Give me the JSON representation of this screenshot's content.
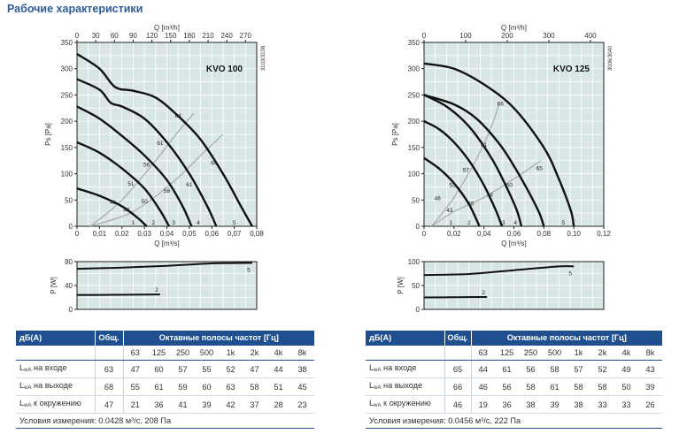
{
  "page": {
    "title": "Рабочие характеристики"
  },
  "products": [
    {
      "name": "KVO 100",
      "code": "3103/3108",
      "table": {
        "header_db": "дБ(А)",
        "header_total": "Общ.",
        "header_bands": "Октавные полосы частот [Гц]",
        "bands": [
          "63",
          "125",
          "250",
          "500",
          "1k",
          "2k",
          "4k",
          "8k"
        ],
        "rows": [
          {
            "label": "L",
            "sub": "wA",
            "suffix": " на входе",
            "total": "63",
            "values": [
              "47",
              "60",
              "57",
              "55",
              "52",
              "47",
              "44",
              "38"
            ]
          },
          {
            "label": "L",
            "sub": "wA",
            "suffix": " на выходе",
            "total": "68",
            "values": [
              "55",
              "61",
              "59",
              "60",
              "63",
              "58",
              "51",
              "45"
            ]
          },
          {
            "label": "L",
            "sub": "wA",
            "suffix": " к окружению",
            "total": "47",
            "values": [
              "21",
              "36",
              "41",
              "39",
              "42",
              "37",
              "28",
              "23"
            ]
          }
        ],
        "conditions": "Условия измерения: 0.0428 м³/с, 208 Па"
      }
    },
    {
      "name": "KVO 125",
      "code": "3006/3040",
      "table": {
        "header_db": "дБ(А)",
        "header_total": "Общ.",
        "header_bands": "Октавные полосы частот [Гц]",
        "bands": [
          "63",
          "125",
          "250",
          "500",
          "1k",
          "2k",
          "4k",
          "8k"
        ],
        "rows": [
          {
            "label": "L",
            "sub": "wA",
            "suffix": " на входе",
            "total": "65",
            "values": [
              "44",
              "61",
              "56",
              "58",
              "57",
              "52",
              "49",
              "43"
            ]
          },
          {
            "label": "L",
            "sub": "wA",
            "suffix": " на выходе",
            "total": "66",
            "values": [
              "46",
              "56",
              "58",
              "61",
              "58",
              "58",
              "50",
              "39"
            ]
          },
          {
            "label": "L",
            "sub": "wA",
            "suffix": " к окружению",
            "total": "46",
            "values": [
              "19",
              "36",
              "38",
              "39",
              "38",
              "33",
              "33",
              "26"
            ]
          }
        ],
        "conditions": "Условия измерения: 0.0456 м³/с, 222 Па"
      }
    }
  ],
  "colors": {
    "curve": "#111111",
    "noise": "#a8a8a8",
    "grid_bg": "#d9e6e6",
    "grid": "#ffffff",
    "header": "#1f4f8f",
    "title": "#2d5b98"
  },
  "chart_data": [
    {
      "type": "line",
      "title": "KVO 100",
      "xlabel": "Q [m³/s]",
      "x2label": "Q [m³/h]",
      "ylabel": "Ps [Pa]",
      "xlim": [
        0,
        0.08
      ],
      "ylim": [
        0,
        350
      ],
      "x2lim": [
        0,
        288
      ],
      "xticks": [
        0,
        0.01,
        0.02,
        0.03,
        0.04,
        0.05,
        0.06,
        0.07,
        0.08
      ],
      "xtick_labels": [
        "0",
        "0,01",
        "0,02",
        "0,03",
        "0,04",
        "0,05",
        "0,06",
        "0,07",
        "0,08"
      ],
      "x2ticks": [
        0,
        30,
        60,
        90,
        120,
        150,
        180,
        210,
        240,
        270
      ],
      "yticks": [
        0,
        50,
        100,
        150,
        200,
        250,
        300,
        350
      ],
      "grid": true,
      "series": [
        {
          "name": "1",
          "points": [
            [
              0,
              72
            ],
            [
              0.01,
              58
            ],
            [
              0.02,
              38
            ],
            [
              0.027,
              16
            ],
            [
              0.031,
              0
            ]
          ]
        },
        {
          "name": "2",
          "points": [
            [
              0,
              160
            ],
            [
              0.01,
              140
            ],
            [
              0.02,
              110
            ],
            [
              0.03,
              72
            ],
            [
              0.037,
              30
            ],
            [
              0.041,
              0
            ]
          ]
        },
        {
          "name": "3",
          "points": [
            [
              0,
              228
            ],
            [
              0.01,
              205
            ],
            [
              0.02,
              172
            ],
            [
              0.03,
              135
            ],
            [
              0.04,
              88
            ],
            [
              0.047,
              38
            ],
            [
              0.051,
              0
            ]
          ]
        },
        {
          "name": "4",
          "points": [
            [
              0,
              280
            ],
            [
              0.01,
              260
            ],
            [
              0.015,
              235
            ],
            [
              0.02,
              228
            ],
            [
              0.03,
              205
            ],
            [
              0.04,
              160
            ],
            [
              0.05,
              100
            ],
            [
              0.058,
              38
            ],
            [
              0.062,
              0
            ]
          ]
        },
        {
          "name": "5",
          "points": [
            [
              0,
              328
            ],
            [
              0.01,
              300
            ],
            [
              0.017,
              265
            ],
            [
              0.025,
              258
            ],
            [
              0.035,
              245
            ],
            [
              0.045,
              210
            ],
            [
              0.055,
              165
            ],
            [
              0.065,
              100
            ],
            [
              0.073,
              38
            ],
            [
              0.078,
              0
            ]
          ]
        }
      ],
      "noise_lines": [
        {
          "points": [
            [
              0.006,
              0
            ],
            [
              0.025,
              28
            ],
            [
              0.043,
              85
            ],
            [
              0.055,
              135
            ],
            [
              0.065,
              175
            ]
          ]
        },
        {
          "points": [
            [
              0.006,
              0
            ],
            [
              0.02,
              50
            ],
            [
              0.035,
              125
            ],
            [
              0.045,
              180
            ],
            [
              0.052,
              215
            ]
          ]
        }
      ],
      "annotations": [
        {
          "text": "1",
          "x": 0.025,
          "y": 2
        },
        {
          "text": "2",
          "x": 0.034,
          "y": 2
        },
        {
          "text": "3",
          "x": 0.043,
          "y": 2
        },
        {
          "text": "4",
          "x": 0.054,
          "y": 2
        },
        {
          "text": "5",
          "x": 0.07,
          "y": 2
        },
        {
          "text": "43",
          "x": 0.022,
          "y": 26
        },
        {
          "text": "46",
          "x": 0.016,
          "y": 40
        },
        {
          "text": "50",
          "x": 0.03,
          "y": 42
        },
        {
          "text": "51",
          "x": 0.024,
          "y": 76
        },
        {
          "text": "56",
          "x": 0.04,
          "y": 62
        },
        {
          "text": "56",
          "x": 0.031,
          "y": 112
        },
        {
          "text": "61",
          "x": 0.05,
          "y": 74
        },
        {
          "text": "61",
          "x": 0.037,
          "y": 153
        },
        {
          "text": "64",
          "x": 0.061,
          "y": 115
        },
        {
          "text": "64",
          "x": 0.045,
          "y": 205
        }
      ],
      "power": {
        "ylabel": "P [W]",
        "ylim": [
          0,
          80
        ],
        "yticks": [
          0,
          40,
          80
        ],
        "series": [
          {
            "name": "5",
            "points": [
              [
                0,
                68
              ],
              [
                0.02,
                70
              ],
              [
                0.04,
                73
              ],
              [
                0.06,
                77
              ],
              [
                0.078,
                78
              ]
            ]
          },
          {
            "name": "2",
            "points": [
              [
                0,
                24
              ],
              [
                0.02,
                24.5
              ],
              [
                0.037,
                25
              ]
            ]
          }
        ]
      }
    },
    {
      "type": "line",
      "title": "KVO 125",
      "xlabel": "Q [m³/s]",
      "x2label": "Q [m³/h]",
      "ylabel": "Ps [Pa]",
      "xlim": [
        0,
        0.12
      ],
      "ylim": [
        0,
        350
      ],
      "x2lim": [
        0,
        432
      ],
      "xticks": [
        0,
        0.02,
        0.04,
        0.06,
        0.08,
        0.1,
        0.12
      ],
      "xtick_labels": [
        "0",
        "0,02",
        "0,04",
        "0,06",
        "0,08",
        "0,10",
        "0,12"
      ],
      "x2ticks": [
        0,
        100,
        200,
        300,
        400
      ],
      "yticks": [
        0,
        50,
        100,
        150,
        200,
        250,
        300,
        350
      ],
      "grid": true,
      "series": [
        {
          "name": "1",
          "points": [
            [
              0,
              130
            ],
            [
              0.01,
              110
            ],
            [
              0.02,
              82
            ],
            [
              0.03,
              42
            ],
            [
              0.037,
              0
            ]
          ]
        },
        {
          "name": "2",
          "points": [
            [
              0,
              200
            ],
            [
              0.01,
              185
            ],
            [
              0.02,
              160
            ],
            [
              0.03,
              125
            ],
            [
              0.04,
              78
            ],
            [
              0.048,
              30
            ],
            [
              0.052,
              0
            ]
          ]
        },
        {
          "name": "3",
          "points": [
            [
              0,
              250
            ],
            [
              0.015,
              228
            ],
            [
              0.03,
              190
            ],
            [
              0.045,
              130
            ],
            [
              0.055,
              75
            ],
            [
              0.062,
              30
            ],
            [
              0.065,
              0
            ]
          ]
        },
        {
          "name": "4",
          "points": [
            [
              0,
              250
            ],
            [
              0.02,
              232
            ],
            [
              0.035,
              205
            ],
            [
              0.05,
              158
            ],
            [
              0.06,
              115
            ],
            [
              0.07,
              65
            ],
            [
              0.077,
              25
            ],
            [
              0.08,
              0
            ]
          ]
        },
        {
          "name": "5",
          "points": [
            [
              0,
              310
            ],
            [
              0.02,
              300
            ],
            [
              0.04,
              270
            ],
            [
              0.06,
              225
            ],
            [
              0.08,
              150
            ],
            [
              0.09,
              90
            ],
            [
              0.098,
              30
            ],
            [
              0.1,
              0
            ]
          ]
        }
      ],
      "noise_lines": [
        {
          "points": [
            [
              0.005,
              0
            ],
            [
              0.02,
              28
            ],
            [
              0.04,
              55
            ],
            [
              0.06,
              90
            ],
            [
              0.078,
              125
            ]
          ]
        },
        {
          "points": [
            [
              0.005,
              0
            ],
            [
              0.02,
              55
            ],
            [
              0.035,
              128
            ],
            [
              0.045,
              190
            ],
            [
              0.05,
              232
            ]
          ]
        }
      ],
      "annotations": [
        {
          "text": "1",
          "x": 0.018,
          "y": 2
        },
        {
          "text": "2",
          "x": 0.03,
          "y": 2
        },
        {
          "text": "3",
          "x": 0.053,
          "y": 2
        },
        {
          "text": "4",
          "x": 0.061,
          "y": 2
        },
        {
          "text": "5",
          "x": 0.093,
          "y": 2
        },
        {
          "text": "43",
          "x": 0.017,
          "y": 25
        },
        {
          "text": "46",
          "x": 0.009,
          "y": 48
        },
        {
          "text": "48",
          "x": 0.031,
          "y": 38
        },
        {
          "text": "53",
          "x": 0.019,
          "y": 73
        },
        {
          "text": "54",
          "x": 0.044,
          "y": 55
        },
        {
          "text": "57",
          "x": 0.028,
          "y": 102
        },
        {
          "text": "60",
          "x": 0.057,
          "y": 73
        },
        {
          "text": "61",
          "x": 0.04,
          "y": 150
        },
        {
          "text": "65",
          "x": 0.077,
          "y": 105
        },
        {
          "text": "66",
          "x": 0.051,
          "y": 228
        }
      ],
      "power": {
        "ylabel": "P [W]",
        "ylim": [
          0,
          100
        ],
        "yticks": [
          0,
          50,
          100
        ],
        "series": [
          {
            "name": "5",
            "points": [
              [
                0,
                72
              ],
              [
                0.03,
                74
              ],
              [
                0.06,
                82
              ],
              [
                0.09,
                90
              ],
              [
                0.1,
                90
              ]
            ]
          },
          {
            "name": "2",
            "points": [
              [
                0,
                25
              ],
              [
                0.025,
                25.5
              ],
              [
                0.042,
                26
              ]
            ]
          }
        ]
      }
    }
  ]
}
